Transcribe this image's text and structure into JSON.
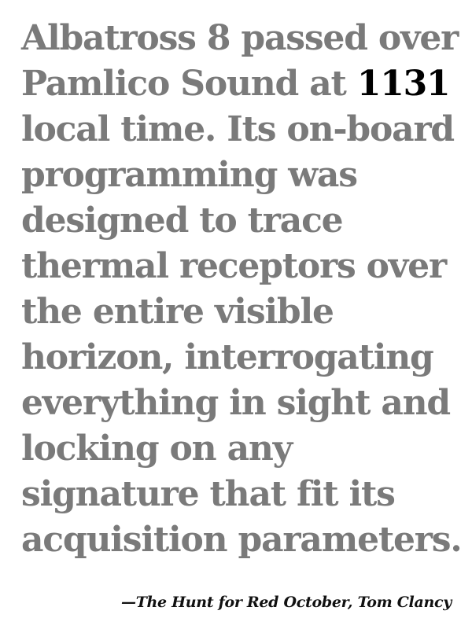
{
  "quote": {
    "lines": [
      "Albatross 8 passed over",
      "Pamlico Sound at ",
      "local time. Its on-board",
      "programming was",
      "designed to trace",
      "thermal receptors over",
      "the entire visible",
      "horizon, interrogating",
      "everything in sight and",
      "locking on any",
      "signature that fit its",
      "acquisition parameters."
    ],
    "highlight": "1131"
  },
  "attribution": {
    "prefix": "—",
    "text": "The Hunt for Red October, Tom Clancy"
  },
  "colors": {
    "quote_text": "#7a7a7a",
    "highlight_text": "#000000",
    "attribution_text": "#111111",
    "background": "#ffffff"
  }
}
